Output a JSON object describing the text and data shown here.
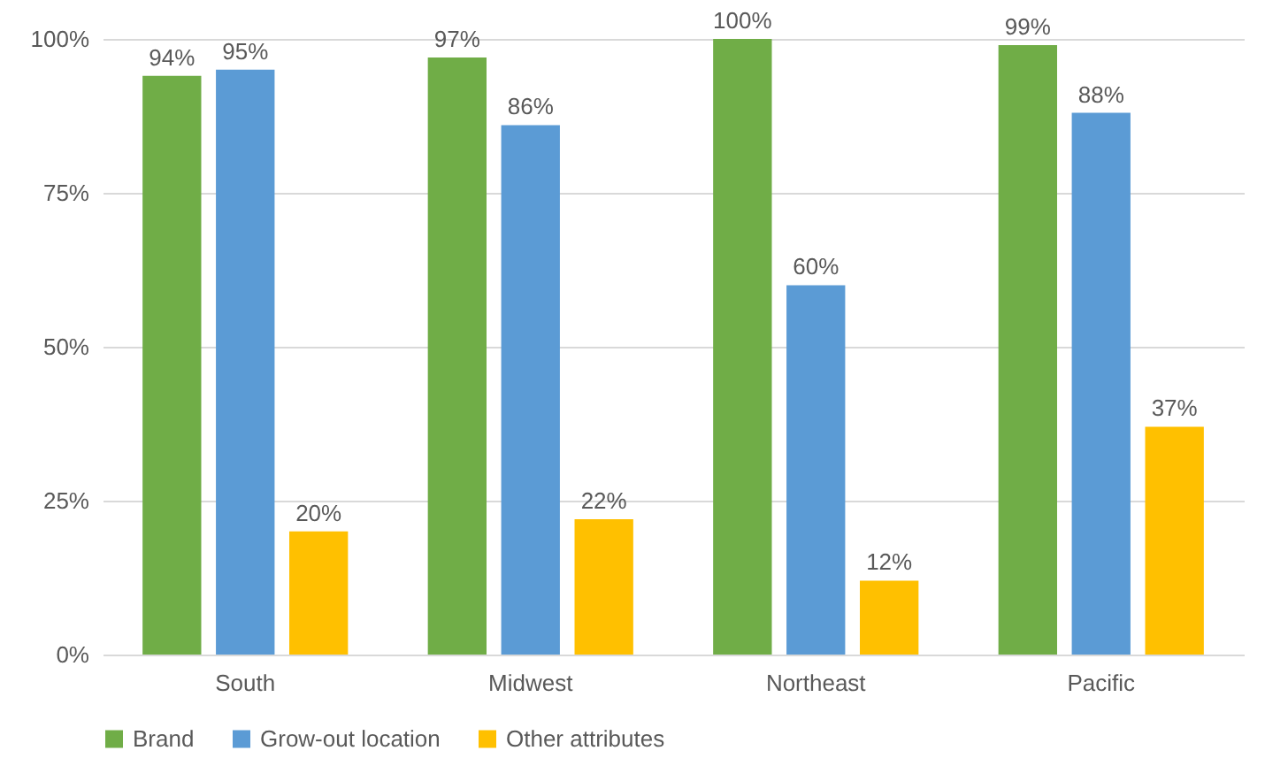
{
  "chart_data": {
    "type": "bar",
    "categories": [
      "South",
      "Midwest",
      "Northeast",
      "Pacific"
    ],
    "series": [
      {
        "name": "Brand",
        "color": "#70ad47",
        "values": [
          94,
          97,
          100,
          99
        ],
        "value_labels": [
          "94%",
          "97%",
          "100%",
          "99%"
        ]
      },
      {
        "name": "Grow-out location",
        "color": "#5b9bd5",
        "values": [
          95,
          86,
          60,
          88
        ],
        "value_labels": [
          "95%",
          "86%",
          "60%",
          "88%"
        ]
      },
      {
        "name": "Other attributes",
        "color": "#ffc000",
        "values": [
          20,
          22,
          12,
          37
        ],
        "value_labels": [
          "20%",
          "22%",
          "12%",
          "37%"
        ]
      }
    ],
    "ylim": [
      0,
      100
    ],
    "yticks": [
      {
        "value": 0,
        "label": "0%"
      },
      {
        "value": 25,
        "label": "25%"
      },
      {
        "value": 50,
        "label": "50%"
      },
      {
        "value": 75,
        "label": "75%"
      },
      {
        "value": 100,
        "label": "100%"
      }
    ],
    "grid": "y",
    "legend": "bottom"
  }
}
